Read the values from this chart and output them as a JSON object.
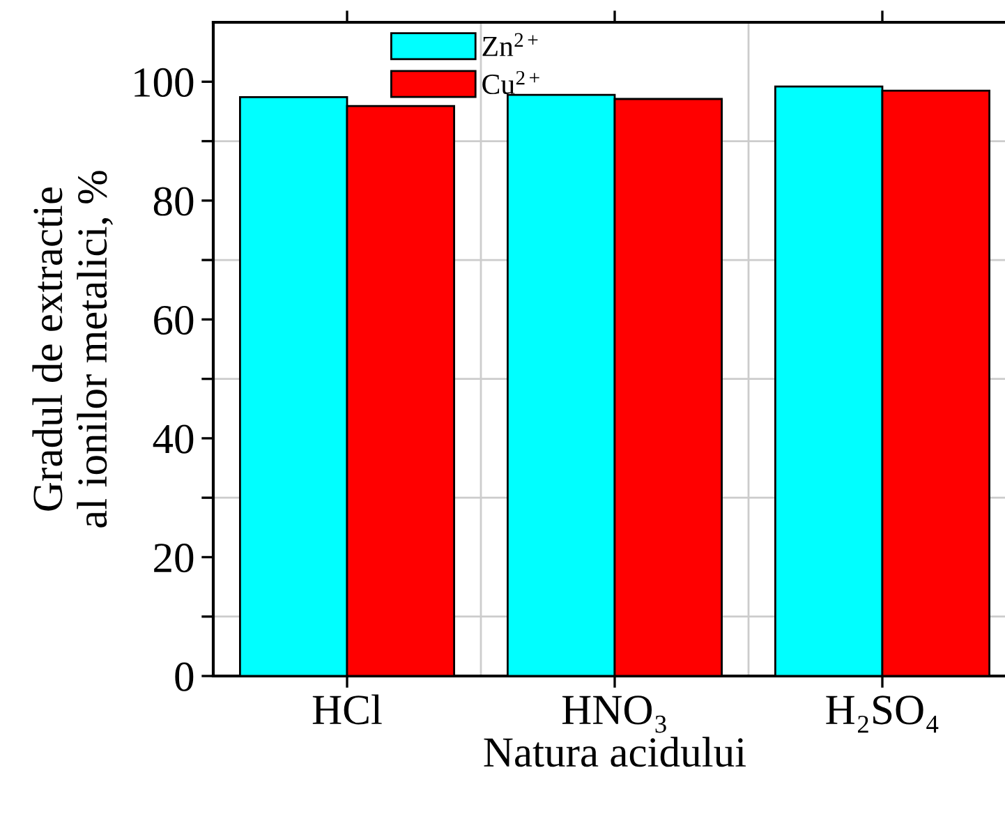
{
  "chart_data": {
    "type": "bar",
    "xlabel": "Natura acidului",
    "ylabel": "Gradul de extractie\nal ionilor metalici, %",
    "categories": [
      "HCl",
      "HNO₃",
      "H₂SO₄"
    ],
    "series": [
      {
        "name": "Zn$^{2+}$",
        "color": "#00ffff",
        "values": [
          97.4,
          97.8,
          99.2
        ]
      },
      {
        "name": "Cu$^{2+}$",
        "color": "#ff0000",
        "values": [
          95.9,
          97.1,
          98.5
        ]
      }
    ],
    "ylim": [
      0,
      110
    ],
    "yticks": [
      0,
      {
        "value": 10,
        "label": null
      },
      20,
      {
        "value": 30,
        "label": null
      },
      40,
      {
        "value": 50,
        "label": null
      },
      60,
      {
        "value": 70,
        "label": null
      },
      80,
      {
        "value": 90,
        "label": null
      },
      100
    ],
    "grid": true,
    "legend": "top left"
  }
}
